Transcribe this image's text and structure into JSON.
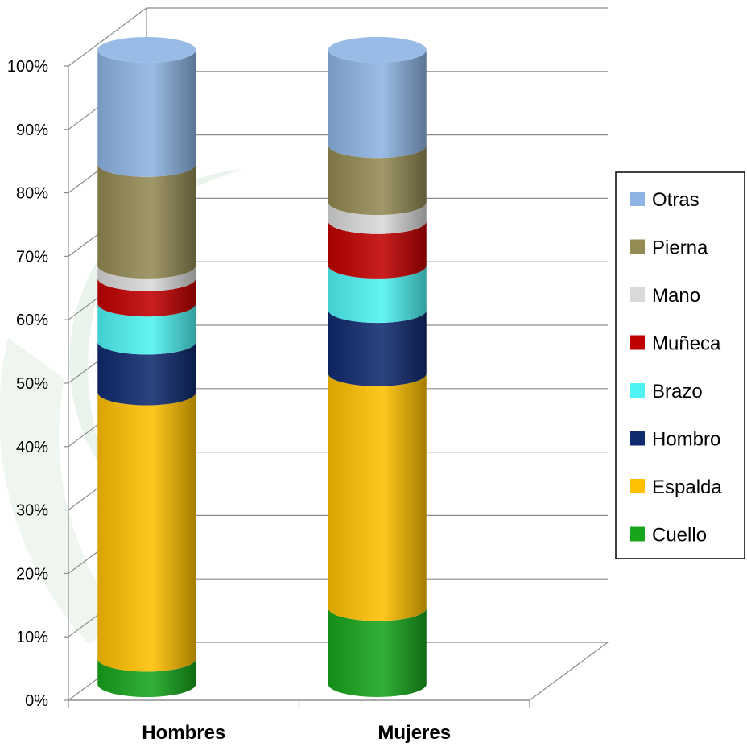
{
  "chart_data": {
    "type": "bar",
    "stacked": true,
    "normalized": true,
    "style": "3d-cylinder",
    "categories": [
      "Hombres",
      "Mujeres"
    ],
    "series": [
      {
        "name": "Cuello",
        "color": "#17a51c",
        "values": [
          4,
          12
        ]
      },
      {
        "name": "Espalda",
        "color": "#ffc000",
        "values": [
          42,
          37
        ]
      },
      {
        "name": "Hombro",
        "color": "#0f2a6e",
        "values": [
          8,
          10
        ]
      },
      {
        "name": "Brazo",
        "color": "#4ff3f3",
        "values": [
          6,
          7
        ]
      },
      {
        "name": "Muñeca",
        "color": "#c00000",
        "values": [
          4,
          7
        ]
      },
      {
        "name": "Mano",
        "color": "#d9d9d9",
        "values": [
          2,
          3
        ]
      },
      {
        "name": "Pierna",
        "color": "#948a54",
        "values": [
          16,
          9
        ]
      },
      {
        "name": "Otras",
        "color": "#8db4e2",
        "values": [
          18,
          15
        ]
      }
    ],
    "y_ticks": [
      "0%",
      "10%",
      "20%",
      "30%",
      "40%",
      "50%",
      "60%",
      "70%",
      "80%",
      "90%",
      "100%"
    ],
    "ylim": [
      0,
      100
    ],
    "grid": true,
    "legend_position": "right",
    "title": "",
    "xlabel": "",
    "ylabel": ""
  }
}
